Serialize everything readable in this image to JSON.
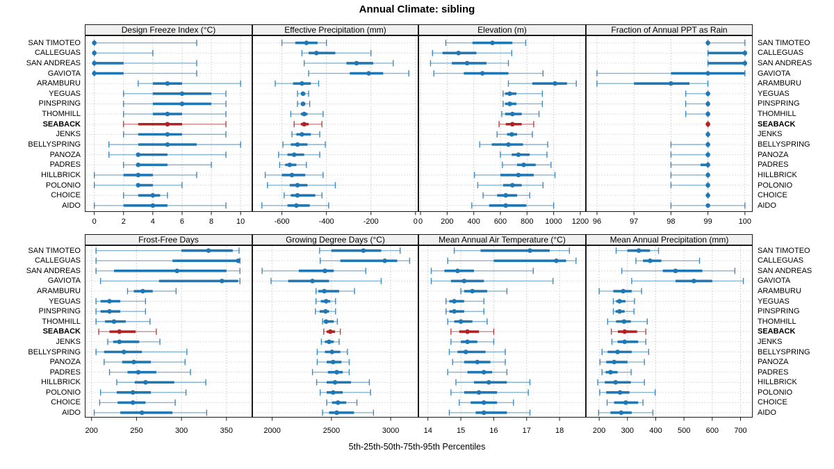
{
  "title": "Annual Climate: sibling",
  "caption": "5th-25th-50th-75th-95th Percentiles",
  "colors": {
    "series": "#1f77b4",
    "highlight": "#b22222",
    "strip_bg": "#f0f0f0",
    "panel_border": "#1a1a1a",
    "grid": "#c6c6c6",
    "row_grid": "#d4d4d4"
  },
  "chart_data": {
    "type": "trellis dot-whisker (percentile range) plot, 2 rows x 4 panels",
    "percentiles": [
      5,
      25,
      50,
      75,
      95
    ],
    "sites": [
      "SAN TIMOTEO",
      "CALLEGUAS",
      "SAN ANDREAS",
      "GAVIOTA",
      "ARAMBURU",
      "YEGUAS",
      "PINSPRING",
      "THOMHILL",
      "SEABACK",
      "JENKS",
      "BELLYSPRING",
      "PANOZA",
      "PADRES",
      "HILLBRICK",
      "POLONIO",
      "CHOICE",
      "AIDO"
    ],
    "highlighted_site": "SEABACK",
    "panels": [
      {
        "title": "Design Freeze Index (°C)",
        "ticks": [
          0,
          2,
          4,
          6,
          8,
          10
        ],
        "xlim": [
          -0.65,
          10.8
        ],
        "values": {
          "SAN TIMOTEO": [
            0,
            0,
            0,
            0,
            7
          ],
          "CALLEGUAS": [
            0,
            0,
            0,
            0,
            4
          ],
          "SAN ANDREAS": [
            0,
            0,
            0,
            2,
            7
          ],
          "GAVIOTA": [
            0,
            0,
            0,
            2,
            7
          ],
          "ARAMBURU": [
            3,
            4,
            5,
            6,
            10
          ],
          "YEGUAS": [
            2,
            4,
            6,
            8,
            9
          ],
          "PINSPRING": [
            2,
            4,
            6,
            8,
            9
          ],
          "THOMHILL": [
            2,
            4,
            5,
            6,
            9
          ],
          "SEABACK": [
            2,
            3,
            5,
            6,
            9
          ],
          "JENKS": [
            2,
            3,
            5,
            6,
            9
          ],
          "BELLYSPRING": [
            1,
            3,
            5,
            7,
            10
          ],
          "PANOZA": [
            1,
            3,
            3,
            5,
            9
          ],
          "PADRES": [
            2,
            3,
            3,
            5,
            8
          ],
          "HILLBRICK": [
            0,
            2,
            3,
            4,
            7
          ],
          "POLONIO": [
            0,
            3,
            3,
            4,
            6
          ],
          "CHOICE": [
            2,
            3,
            4,
            4.5,
            5
          ],
          "AIDO": [
            0,
            2,
            4,
            5,
            9
          ]
        }
      },
      {
        "title": "Effective Precipitation (mm)",
        "ticks": [
          -600,
          -400,
          -200,
          0
        ],
        "xlim": [
          -733,
          13
        ],
        "values": {
          "SAN TIMOTEO": [
            -600,
            -540,
            -490,
            -440,
            -400
          ],
          "CALLEGUAS": [
            -510,
            -480,
            -445,
            -360,
            -200
          ],
          "SAN ANDREAS": [
            -500,
            -310,
            -265,
            -190,
            -100
          ],
          "GAVIOTA": [
            -480,
            -295,
            -210,
            -145,
            -30
          ],
          "ARAMBURU": [
            -630,
            -550,
            -510,
            -470,
            -435
          ],
          "YEGUAS": [
            -530,
            -515,
            -505,
            -495,
            -480
          ],
          "PINSPRING": [
            -530,
            -515,
            -505,
            -495,
            -475
          ],
          "THOMHILL": [
            -560,
            -515,
            -500,
            -485,
            -415
          ],
          "SEABACK": [
            -545,
            -515,
            -500,
            -480,
            -420
          ],
          "JENKS": [
            -555,
            -535,
            -510,
            -470,
            -430
          ],
          "BELLYSPRING": [
            -595,
            -560,
            -530,
            -485,
            -405
          ],
          "PANOZA": [
            -615,
            -575,
            -545,
            -500,
            -430
          ],
          "PADRES": [
            -610,
            -585,
            -565,
            -535,
            -490
          ],
          "HILLBRICK": [
            -675,
            -600,
            -555,
            -495,
            -415
          ],
          "POLONIO": [
            -665,
            -565,
            -530,
            -485,
            -360
          ],
          "CHOICE": [
            -590,
            -560,
            -530,
            -450,
            -420
          ],
          "AIDO": [
            -690,
            -575,
            -535,
            -475,
            -390
          ]
        }
      },
      {
        "title": "Elevation (m)",
        "ticks": [
          0,
          200,
          400,
          600,
          800,
          1000,
          1200
        ],
        "xlim": [
          -16,
          1242
        ],
        "values": {
          "SAN TIMOTEO": [
            190,
            390,
            540,
            690,
            790
          ],
          "CALLEGUAS": [
            90,
            165,
            285,
            420,
            685
          ],
          "SAN ANDREAS": [
            75,
            235,
            350,
            495,
            660
          ],
          "GAVIOTA": [
            100,
            325,
            465,
            660,
            920
          ],
          "ARAMBURU": [
            660,
            840,
            1010,
            1100,
            1170
          ],
          "YEGUAS": [
            620,
            635,
            670,
            720,
            915
          ],
          "PINSPRING": [
            620,
            635,
            670,
            720,
            915
          ],
          "THOMHILL": [
            610,
            635,
            690,
            760,
            890
          ],
          "SEABACK": [
            590,
            640,
            690,
            760,
            850
          ],
          "JENKS": [
            575,
            650,
            685,
            725,
            840
          ],
          "BELLYSPRING": [
            445,
            535,
            660,
            770,
            955
          ],
          "PANOZA": [
            600,
            685,
            735,
            820,
            950
          ],
          "PADRES": [
            615,
            725,
            775,
            865,
            980
          ],
          "HILLBRICK": [
            405,
            600,
            735,
            850,
            1010
          ],
          "POLONIO": [
            430,
            620,
            690,
            760,
            920
          ],
          "CHOICE": [
            470,
            575,
            640,
            725,
            820
          ],
          "AIDO": [
            385,
            515,
            640,
            795,
            1000
          ]
        }
      },
      {
        "title": "Fraction of Annual PPT as Rain",
        "ticks": [
          96,
          97,
          98,
          99,
          100
        ],
        "xlim": [
          95.7,
          100.21
        ],
        "values": {
          "SAN TIMOTEO": [
            99,
            99,
            99,
            99,
            100
          ],
          "CALLEGUAS": [
            99,
            99,
            100,
            100,
            100
          ],
          "SAN ANDREAS": [
            99,
            99,
            100,
            100,
            100
          ],
          "GAVIOTA": [
            96,
            98,
            99,
            100,
            100
          ],
          "ARAMBURU": [
            96,
            97,
            98,
            98.5,
            99
          ],
          "YEGUAS": [
            98.4,
            99,
            99,
            99,
            99
          ],
          "PINSPRING": [
            98.4,
            99,
            99,
            99,
            99
          ],
          "THOMHILL": [
            98.4,
            99,
            99,
            99,
            99
          ],
          "SEABACK": [
            99,
            99,
            99,
            99,
            99
          ],
          "JENKS": [
            99,
            99,
            99,
            99,
            99
          ],
          "BELLYSPRING": [
            98,
            99,
            99,
            99,
            99
          ],
          "PANOZA": [
            98,
            99,
            99,
            99,
            99
          ],
          "PADRES": [
            98,
            98.8,
            99,
            99,
            99
          ],
          "HILLBRICK": [
            98,
            99,
            99,
            99,
            99
          ],
          "POLONIO": [
            98,
            99,
            99,
            99,
            99
          ],
          "CHOICE": [
            99,
            99,
            99,
            99,
            99
          ],
          "AIDO": [
            98,
            99,
            99,
            99,
            100
          ]
        }
      },
      {
        "title": "Frost-Free Days",
        "ticks": [
          200,
          250,
          300,
          350
        ],
        "xlim": [
          192.5,
          378.7
        ],
        "values": {
          "SAN TIMOTEO": [
            205,
            300,
            330,
            357,
            364
          ],
          "CALLEGUAS": [
            205,
            290,
            363,
            364,
            365
          ],
          "SAN ANDREAS": [
            205,
            225,
            295,
            350,
            365
          ],
          "GAVIOTA": [
            210,
            275,
            345,
            363,
            365
          ],
          "ARAMBURU": [
            240,
            247,
            257,
            268,
            294
          ],
          "YEGUAS": [
            205,
            210,
            220,
            232,
            260
          ],
          "PINSPRING": [
            205,
            210,
            220,
            232,
            260
          ],
          "THOMHILL": [
            205,
            215,
            225,
            238,
            265
          ],
          "SEABACK": [
            208,
            220,
            231,
            249,
            272
          ],
          "JENKS": [
            218,
            224,
            231,
            253,
            276
          ],
          "BELLYSPRING": [
            205,
            214,
            236,
            256,
            306
          ],
          "PANOZA": [
            214,
            234,
            247,
            266,
            304
          ],
          "PADRES": [
            220,
            240,
            252,
            272,
            310
          ],
          "HILLBRICK": [
            228,
            248,
            260,
            292,
            327
          ],
          "POLONIO": [
            210,
            228,
            246,
            266,
            305
          ],
          "CHOICE": [
            209,
            229,
            246,
            260,
            293
          ],
          "AIDO": [
            203,
            232,
            256,
            290,
            328
          ]
        }
      },
      {
        "title": "Growing Degree Days (°C)",
        "ticks": [
          2000,
          2500,
          3000
        ],
        "xlim": [
          1832,
          3234
        ],
        "values": {
          "SAN TIMOTEO": [
            2400,
            2500,
            2770,
            2920,
            3080
          ],
          "CALLEGUAS": [
            2405,
            2575,
            2950,
            3055,
            3160
          ],
          "SAN ANDREAS": [
            1915,
            2225,
            2445,
            2520,
            2790
          ],
          "GAVIOTA": [
            1990,
            2135,
            2340,
            2480,
            2920
          ],
          "ARAMBURU": [
            2370,
            2390,
            2440,
            2565,
            2695
          ],
          "YEGUAS": [
            2370,
            2410,
            2455,
            2490,
            2535
          ],
          "PINSPRING": [
            2365,
            2400,
            2450,
            2480,
            2535
          ],
          "THOMHILL": [
            2425,
            2435,
            2455,
            2520,
            2550
          ],
          "SEABACK": [
            2435,
            2460,
            2490,
            2530,
            2575
          ],
          "JENKS": [
            2415,
            2445,
            2480,
            2520,
            2565
          ],
          "BELLYSPRING": [
            2380,
            2445,
            2505,
            2575,
            2635
          ],
          "PANOZA": [
            2380,
            2460,
            2515,
            2585,
            2650
          ],
          "PADRES": [
            2340,
            2470,
            2545,
            2595,
            2650
          ],
          "HILLBRICK": [
            2375,
            2460,
            2530,
            2665,
            2820
          ],
          "POLONIO": [
            2405,
            2460,
            2515,
            2595,
            2830
          ],
          "CHOICE": [
            2460,
            2505,
            2555,
            2625,
            2715
          ],
          "AIDO": [
            2425,
            2480,
            2545,
            2690,
            2855
          ]
        }
      },
      {
        "title": "Mean Annual Air Temperature (°C)",
        "ticks": [
          14,
          15,
          16,
          17,
          18
        ],
        "xlim": [
          13.71,
          18.8
        ],
        "values": {
          "SAN TIMOTEO": [
            14.8,
            15.6,
            17.1,
            17.7,
            18.3
          ],
          "CALLEGUAS": [
            14.6,
            16.0,
            17.9,
            18.2,
            18.5
          ],
          "SAN ANDREAS": [
            14.1,
            14.5,
            14.9,
            15.4,
            17.2
          ],
          "GAVIOTA": [
            14.1,
            14.7,
            15.1,
            15.7,
            17.8
          ],
          "ARAMBURU": [
            15.0,
            15.1,
            15.35,
            15.8,
            16.4
          ],
          "YEGUAS": [
            14.55,
            14.65,
            14.8,
            15.1,
            15.7
          ],
          "PINSPRING": [
            14.55,
            14.65,
            14.8,
            15.1,
            15.7
          ],
          "THOMHILL": [
            14.6,
            14.8,
            15.0,
            15.35,
            15.8
          ],
          "SEABACK": [
            14.7,
            14.95,
            15.2,
            15.55,
            16.0
          ],
          "JENKS": [
            14.7,
            15.0,
            15.2,
            15.5,
            16.0
          ],
          "BELLYSPRING": [
            14.65,
            14.9,
            15.15,
            15.75,
            16.35
          ],
          "PANOZA": [
            14.75,
            15.1,
            15.5,
            15.9,
            16.35
          ],
          "PADRES": [
            14.6,
            15.2,
            15.7,
            15.95,
            16.4
          ],
          "HILLBRICK": [
            14.85,
            15.4,
            15.85,
            16.4,
            17.1
          ],
          "POLONIO": [
            14.7,
            15.1,
            15.55,
            16.1,
            17.05
          ],
          "CHOICE": [
            14.95,
            15.3,
            15.7,
            16.1,
            16.6
          ],
          "AIDO": [
            14.65,
            15.45,
            15.7,
            16.4,
            17.1
          ]
        }
      },
      {
        "title": "Mean Annual Precipitation (mm)",
        "ticks": [
          200,
          300,
          400,
          500,
          600,
          700
        ],
        "xlim": [
          153,
          743
        ],
        "values": {
          "SAN TIMOTEO": [
            260,
            300,
            340,
            380,
            410
          ],
          "CALLEGUAS": [
            330,
            355,
            380,
            420,
            555
          ],
          "SAN ANDREAS": [
            280,
            425,
            470,
            565,
            680
          ],
          "GAVIOTA": [
            315,
            470,
            535,
            600,
            710
          ],
          "ARAMBURU": [
            200,
            250,
            285,
            315,
            350
          ],
          "YEGUAS": [
            250,
            260,
            272,
            293,
            325
          ],
          "PINSPRING": [
            250,
            258,
            272,
            290,
            323
          ],
          "THOMHILL": [
            230,
            260,
            288,
            312,
            370
          ],
          "SEABACK": [
            243,
            266,
            290,
            334,
            365
          ],
          "JENKS": [
            245,
            265,
            290,
            338,
            365
          ],
          "BELLYSPRING": [
            210,
            230,
            265,
            315,
            375
          ],
          "PANOZA": [
            203,
            225,
            253,
            300,
            360
          ],
          "PADRES": [
            210,
            223,
            240,
            265,
            313
          ],
          "HILLBRICK": [
            195,
            220,
            258,
            312,
            360
          ],
          "POLONIO": [
            202,
            225,
            274,
            307,
            398
          ],
          "CHOICE": [
            228,
            253,
            294,
            338,
            355
          ],
          "AIDO": [
            198,
            240,
            278,
            315,
            390
          ]
        }
      }
    ]
  }
}
